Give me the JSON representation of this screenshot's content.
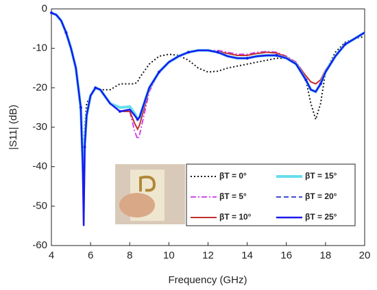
{
  "chart_data": {
    "type": "line",
    "xlabel": "Frequency (GHz)",
    "ylabel": "|S11| (dB)",
    "xlim": [
      4,
      20
    ],
    "xticks": [
      4,
      6,
      8,
      10,
      12,
      14,
      16,
      18,
      20
    ],
    "ylim": [
      -60,
      0
    ],
    "yticks": [
      -60,
      -50,
      -40,
      -30,
      -20,
      -10,
      0
    ],
    "x": [
      4,
      4.25,
      4.5,
      4.75,
      5,
      5.25,
      5.5,
      5.6,
      5.65,
      5.7,
      5.8,
      6,
      6.25,
      6.5,
      7,
      7.5,
      8,
      8.25,
      8.4,
      8.5,
      9,
      9.5,
      10,
      10.5,
      11,
      11.5,
      12,
      12.5,
      13,
      13.5,
      14,
      14.5,
      15,
      15.5,
      16,
      16.5,
      17,
      17.25,
      17.5,
      17.75,
      18,
      18.5,
      19,
      19.5,
      20
    ],
    "series": [
      {
        "name": "βT = 0°",
        "color": "#111111",
        "dash": "dot",
        "values": [
          -1,
          -1.5,
          -3,
          -6,
          -10,
          -15,
          -24,
          -33,
          -36,
          -30,
          -24,
          -22,
          -20,
          -20.5,
          -20.5,
          -19,
          -19,
          -19,
          -18.5,
          -17.5,
          -14,
          -12,
          -11.5,
          -11.8,
          -13,
          -15,
          -16,
          -15.8,
          -15,
          -14.5,
          -14,
          -13.5,
          -13,
          -12.5,
          -12.5,
          -14,
          -18,
          -24,
          -28,
          -24,
          -16,
          -11,
          -8.5,
          -7.5,
          -7
        ]
      },
      {
        "name": "βT = 5°",
        "color": "#cc33ee",
        "dash": "dashdot",
        "values": [
          -1,
          -1.5,
          -3,
          -6,
          -10,
          -15,
          -25,
          -38,
          -48,
          -34,
          -27,
          -22,
          -20,
          -20.5,
          -24,
          -26,
          -26,
          -31,
          -33,
          -32,
          -21,
          -16,
          -13.5,
          -12,
          -11,
          -10.5,
          -10.5,
          -10.5,
          -11,
          -11.5,
          -11.5,
          -11,
          -10.8,
          -11,
          -12,
          -13.5,
          -17,
          -18.5,
          -19,
          -18,
          -15.5,
          -12,
          -9,
          -7.5,
          -6
        ]
      },
      {
        "name": "βT = 10°",
        "color": "#c0302a",
        "dash": "solid",
        "values": [
          -1,
          -1.5,
          -3,
          -6,
          -10,
          -15,
          -25,
          -40,
          -55,
          -35,
          -27,
          -22,
          -20,
          -20.5,
          -24,
          -26,
          -26,
          -29,
          -30.5,
          -29.5,
          -20.5,
          -16,
          -13.5,
          -12,
          -11,
          -10.5,
          -10.6,
          -10.8,
          -11.3,
          -11.8,
          -11.8,
          -11.3,
          -11,
          -11.2,
          -12.2,
          -13.7,
          -17,
          -18.5,
          -19,
          -18,
          -15.5,
          -12,
          -9,
          -7.5,
          -6
        ]
      },
      {
        "name": "βT = 15°",
        "color": "#66ddee",
        "dash": "solid",
        "values": [
          -1,
          -1.5,
          -3,
          -6,
          -10,
          -15,
          -25,
          -38,
          -46,
          -34,
          -27,
          -22,
          -20,
          -20.5,
          -24,
          -25,
          -24.8,
          -26.5,
          -28,
          -27.5,
          -20,
          -16,
          -13.5,
          -12,
          -11,
          -10.5,
          -10.5,
          -11,
          -12,
          -12.5,
          -12.5,
          -12,
          -11.8,
          -11.8,
          -12.5,
          -14,
          -18,
          -20.5,
          -21,
          -19,
          -16,
          -12,
          -9,
          -7.5,
          -6
        ]
      },
      {
        "name": "βT = 20°",
        "color": "#2233cc",
        "dash": "dash",
        "values": [
          -1,
          -1.5,
          -3,
          -6,
          -10,
          -15,
          -25,
          -40,
          -52,
          -35,
          -27,
          -22,
          -20,
          -20.5,
          -24,
          -26,
          -25.5,
          -27,
          -28,
          -27.5,
          -20,
          -16,
          -13.5,
          -12,
          -11,
          -10.5,
          -10.5,
          -11,
          -12,
          -12.5,
          -12.5,
          -12,
          -11.8,
          -11.8,
          -12.5,
          -14,
          -18,
          -20.5,
          -21,
          -19,
          -16,
          -12,
          -9,
          -7.5,
          -6
        ]
      },
      {
        "name": "βT = 25°",
        "color": "#1a1aee",
        "dash": "solid",
        "values": [
          -1,
          -1.5,
          -3,
          -6,
          -10,
          -15,
          -25,
          -40,
          -55,
          -35,
          -27,
          -22,
          -20,
          -20.5,
          -24,
          -26,
          -25.5,
          -27,
          -28,
          -27.5,
          -20,
          -16,
          -13.5,
          -12,
          -11,
          -10.5,
          -10.5,
          -11,
          -12,
          -12.5,
          -12.5,
          -12,
          -11.8,
          -11.8,
          -12.5,
          -14,
          -18,
          -20.5,
          -21,
          -19,
          -16,
          -12,
          -9,
          -7.5,
          -6
        ]
      }
    ]
  }
}
